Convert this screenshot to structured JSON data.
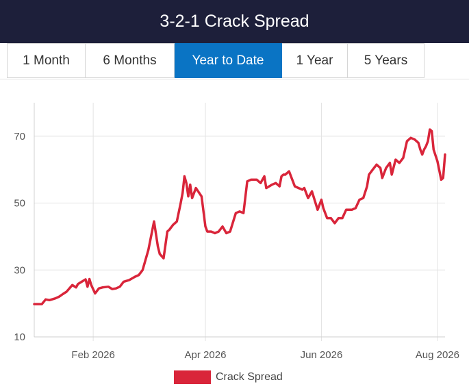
{
  "title": "3-2-1 Crack Spread",
  "tabs": [
    {
      "label": "1 Month",
      "active": false
    },
    {
      "label": "6 Months",
      "active": false
    },
    {
      "label": "Year to Date",
      "active": true
    },
    {
      "label": "1 Year",
      "active": false
    },
    {
      "label": "5 Years",
      "active": false
    }
  ],
  "colors": {
    "header_bg": "#1d1f3a",
    "active_tab": "#0a74c4",
    "series": "#d9253a"
  },
  "chart_data": {
    "type": "line",
    "title": "3-2-1 Crack Spread",
    "xlabel": "",
    "ylabel": "",
    "ylim": [
      10,
      80
    ],
    "y_ticks": [
      10,
      30,
      50,
      70
    ],
    "xlim": [
      "2026-01-01",
      "2026-08-05"
    ],
    "x_ticks": [
      {
        "date": "2026-02-01",
        "label": "Feb 2026"
      },
      {
        "date": "2026-04-01",
        "label": "Apr 2026"
      },
      {
        "date": "2026-06-01",
        "label": "Jun 2026"
      },
      {
        "date": "2026-08-01",
        "label": "Aug 2026"
      }
    ],
    "grid": true,
    "legend_position": "bottom-center",
    "series": [
      {
        "name": "Crack Spread",
        "color": "#d9253a",
        "x": [
          "2026-01-01",
          "2026-01-05",
          "2026-01-07",
          "2026-01-09",
          "2026-01-12",
          "2026-01-14",
          "2026-01-16",
          "2026-01-18",
          "2026-01-21",
          "2026-01-23",
          "2026-01-24",
          "2026-01-26",
          "2026-01-28",
          "2026-01-29",
          "2026-01-30",
          "2026-01-31",
          "2026-02-02",
          "2026-02-04",
          "2026-02-06",
          "2026-02-09",
          "2026-02-11",
          "2026-02-13",
          "2026-02-15",
          "2026-02-17",
          "2026-02-20",
          "2026-02-23",
          "2026-02-25",
          "2026-02-27",
          "2026-03-02",
          "2026-03-05",
          "2026-03-07",
          "2026-03-08",
          "2026-03-10",
          "2026-03-12",
          "2026-03-13",
          "2026-03-15",
          "2026-03-17",
          "2026-03-19",
          "2026-03-20",
          "2026-03-21",
          "2026-03-22",
          "2026-03-23",
          "2026-03-24",
          "2026-03-25",
          "2026-03-27",
          "2026-03-30",
          "2026-04-01",
          "2026-04-02",
          "2026-04-04",
          "2026-04-06",
          "2026-04-08",
          "2026-04-10",
          "2026-04-12",
          "2026-04-14",
          "2026-04-17",
          "2026-04-19",
          "2026-04-21",
          "2026-04-23",
          "2026-04-25",
          "2026-04-28",
          "2026-04-30",
          "2026-05-02",
          "2026-05-03",
          "2026-05-06",
          "2026-05-08",
          "2026-05-10",
          "2026-05-11",
          "2026-05-12",
          "2026-05-13",
          "2026-05-15",
          "2026-05-18",
          "2026-05-20",
          "2026-05-22",
          "2026-05-23",
          "2026-05-25",
          "2026-05-27",
          "2026-05-30",
          "2026-06-01",
          "2026-06-02",
          "2026-06-04",
          "2026-06-06",
          "2026-06-08",
          "2026-06-10",
          "2026-06-12",
          "2026-06-14",
          "2026-06-17",
          "2026-06-19",
          "2026-06-21",
          "2026-06-23",
          "2026-06-25",
          "2026-06-26",
          "2026-06-28",
          "2026-06-30",
          "2026-07-02",
          "2026-07-03",
          "2026-07-05",
          "2026-07-07",
          "2026-07-08",
          "2026-07-10",
          "2026-07-12",
          "2026-07-14",
          "2026-07-16",
          "2026-07-18",
          "2026-07-20",
          "2026-07-22",
          "2026-07-23",
          "2026-07-24",
          "2026-07-25",
          "2026-07-26",
          "2026-07-27",
          "2026-07-28",
          "2026-07-29",
          "2026-07-30",
          "2026-08-01",
          "2026-08-03",
          "2026-08-04",
          "2026-08-05"
        ],
        "y": [
          19.8,
          19.8,
          21.2,
          21.0,
          21.5,
          22.0,
          22.8,
          23.5,
          25.5,
          24.8,
          25.8,
          26.5,
          27.2,
          25.0,
          27.3,
          25.5,
          23.0,
          24.5,
          24.8,
          25.0,
          24.3,
          24.5,
          25.0,
          26.5,
          27.0,
          28.0,
          28.5,
          30.0,
          36.0,
          44.5,
          37.0,
          34.8,
          33.5,
          41.5,
          42.0,
          43.5,
          44.5,
          50.0,
          53.0,
          58.0,
          56.0,
          52.0,
          55.5,
          51.5,
          54.5,
          52.0,
          43.0,
          41.5,
          41.5,
          41.0,
          41.5,
          43.0,
          41.0,
          41.5,
          47.0,
          47.5,
          47.0,
          56.5,
          57.0,
          57.0,
          56.0,
          58.0,
          54.5,
          55.5,
          56.0,
          55.0,
          58.0,
          58.5,
          58.5,
          59.5,
          55.0,
          54.5,
          54.0,
          54.5,
          51.5,
          53.5,
          48.0,
          51.0,
          48.5,
          45.5,
          45.5,
          44.0,
          45.5,
          45.5,
          48.0,
          48.0,
          48.5,
          51.0,
          51.5,
          55.0,
          58.5,
          60.0,
          61.5,
          60.5,
          57.5,
          60.5,
          62.0,
          58.5,
          63.0,
          62.0,
          63.5,
          68.5,
          69.5,
          69.0,
          68.0,
          66.0,
          64.5,
          66.0,
          67.0,
          68.5,
          72.0,
          71.5,
          66.0,
          62.5,
          57.0,
          57.5,
          64.5
        ]
      }
    ]
  }
}
